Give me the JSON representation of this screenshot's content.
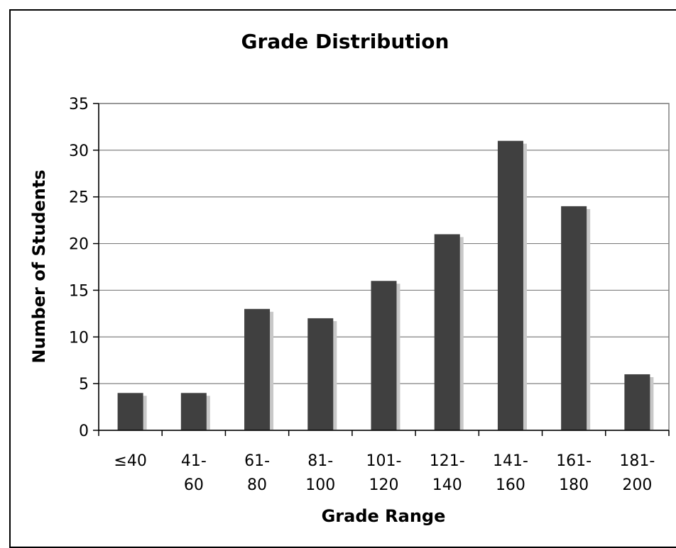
{
  "chart_data": {
    "type": "bar",
    "title": "Grade Distribution",
    "xlabel": "Grade Range",
    "ylabel": "Number of Students",
    "categories": [
      [
        "≤40"
      ],
      [
        "41-",
        "60"
      ],
      [
        "61-",
        "80"
      ],
      [
        "81-",
        "100"
      ],
      [
        "101-",
        "120"
      ],
      [
        "121-",
        "140"
      ],
      [
        "141-",
        "160"
      ],
      [
        "161-",
        "180"
      ],
      [
        "181-",
        "200"
      ]
    ],
    "values": [
      4,
      4,
      13,
      12,
      16,
      21,
      31,
      24,
      6
    ],
    "ylim": [
      0,
      35
    ],
    "yticks": [
      0,
      5,
      10,
      15,
      20,
      25,
      30,
      35
    ],
    "grid": true,
    "legend": "none",
    "colors": {
      "bar": "#404040",
      "shadow": "#c8c8c8",
      "grid": "#808080",
      "axis": "#808080"
    }
  }
}
